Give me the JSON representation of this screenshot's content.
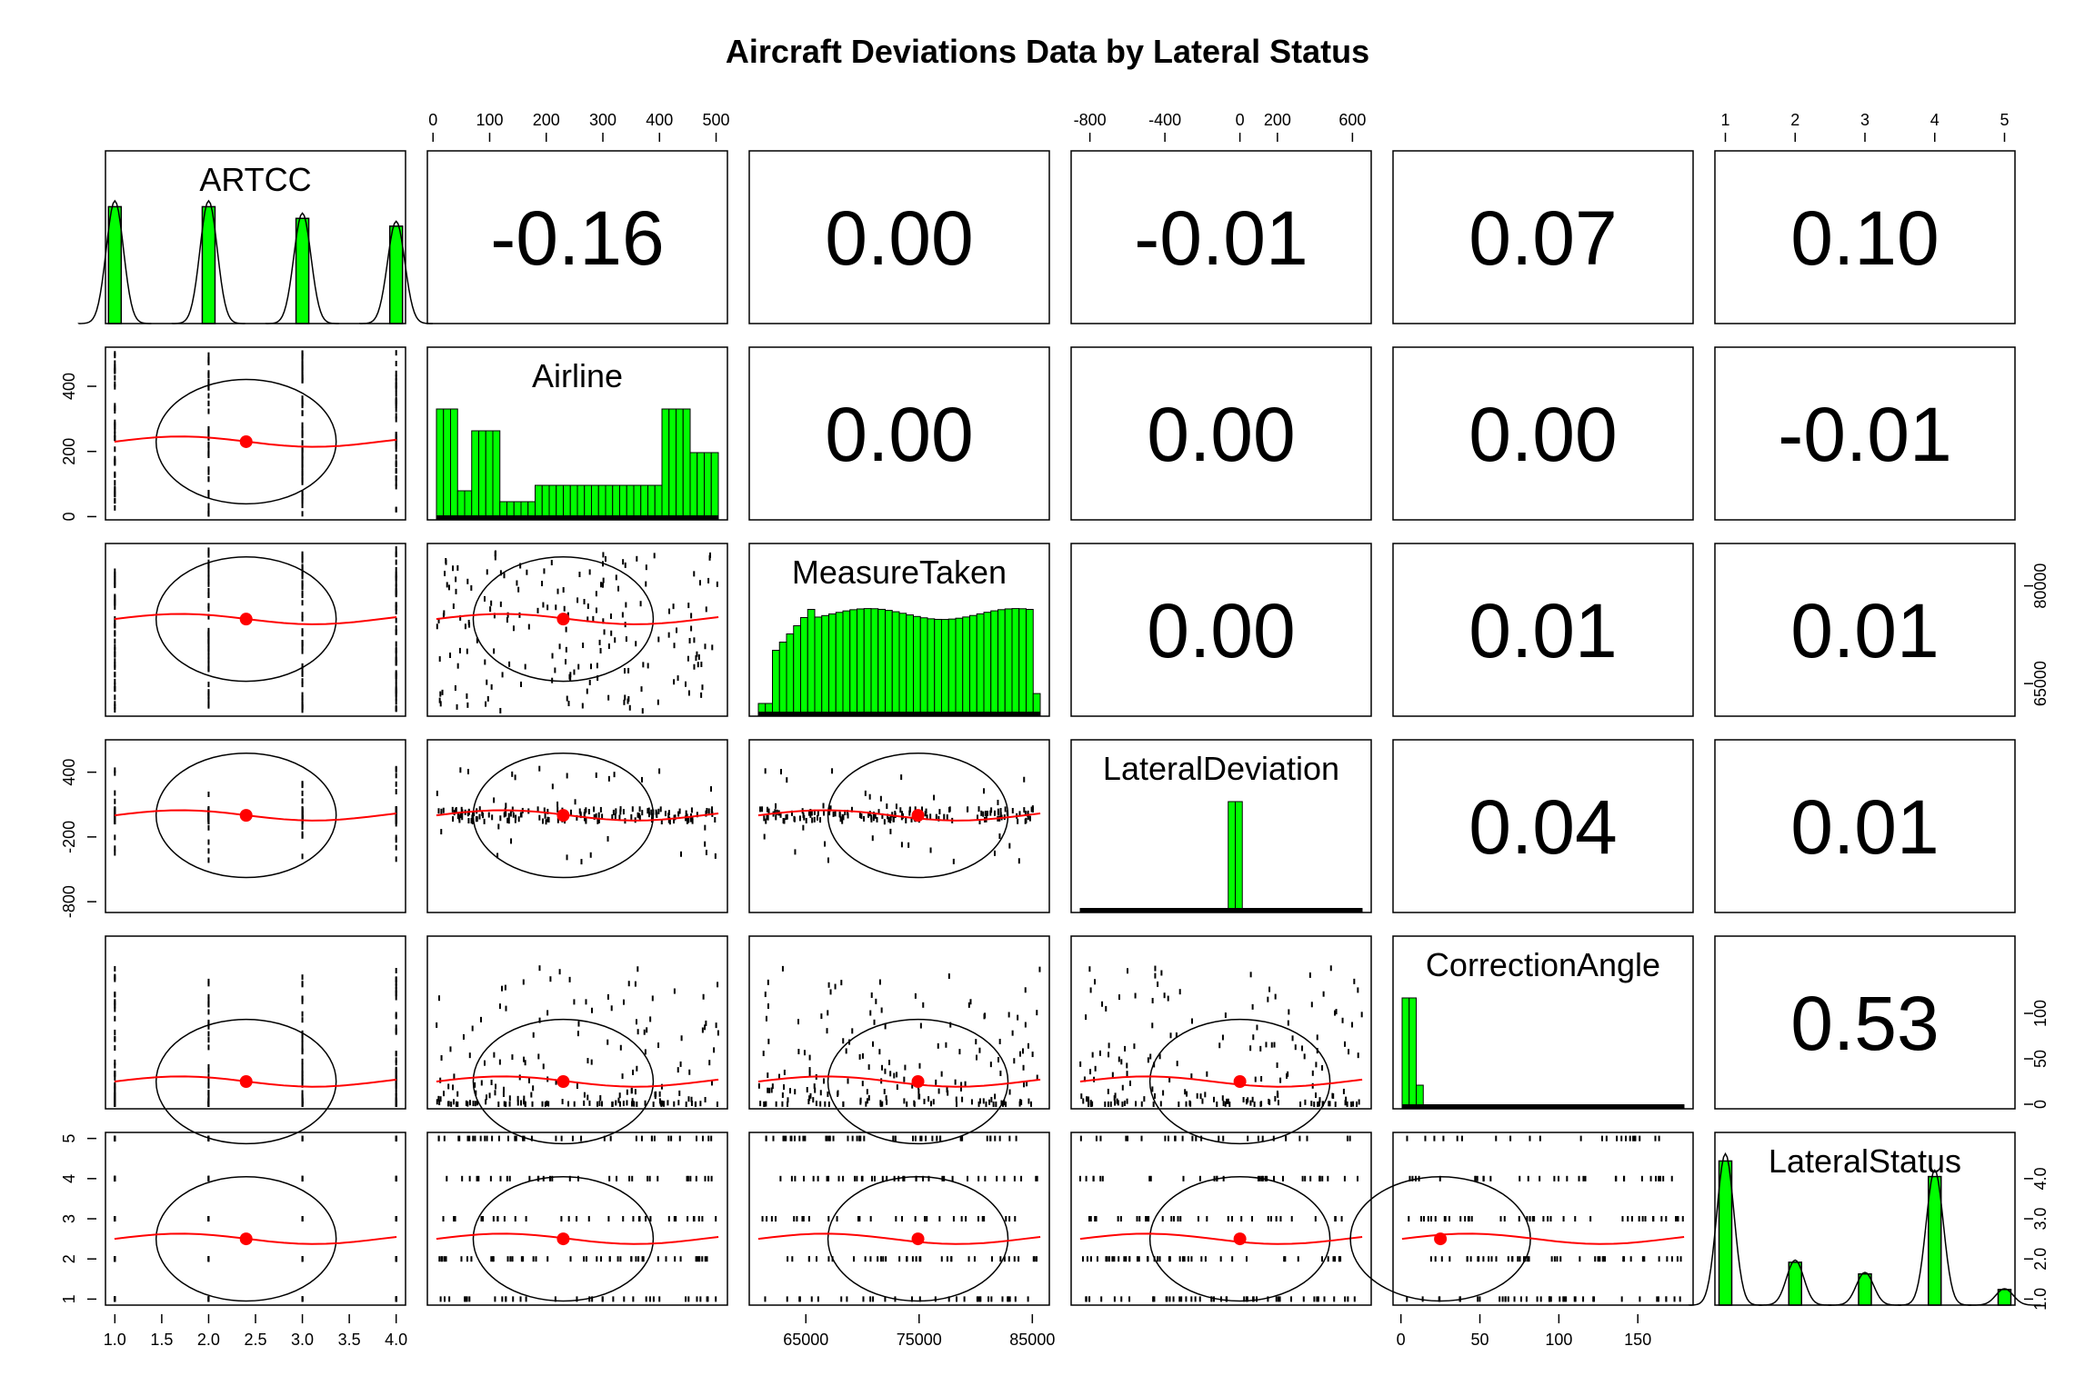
{
  "chart_data": {
    "type": "scatter",
    "title": "Aircraft Deviations Data by Lateral Status",
    "variables": [
      "ARTCC",
      "Airline",
      "MeasureTaken",
      "LateralDeviation",
      "CorrectionAngle",
      "LateralStatus"
    ],
    "correlations": [
      {
        "row": "ARTCC",
        "col": "Airline",
        "value": "-0.16"
      },
      {
        "row": "ARTCC",
        "col": "MeasureTaken",
        "value": "0.00"
      },
      {
        "row": "ARTCC",
        "col": "LateralDeviation",
        "value": "-0.01"
      },
      {
        "row": "ARTCC",
        "col": "CorrectionAngle",
        "value": "0.07"
      },
      {
        "row": "ARTCC",
        "col": "LateralStatus",
        "value": "0.10"
      },
      {
        "row": "Airline",
        "col": "MeasureTaken",
        "value": "0.00"
      },
      {
        "row": "Airline",
        "col": "LateralDeviation",
        "value": "0.00"
      },
      {
        "row": "Airline",
        "col": "CorrectionAngle",
        "value": "0.00"
      },
      {
        "row": "Airline",
        "col": "LateralStatus",
        "value": "-0.01"
      },
      {
        "row": "MeasureTaken",
        "col": "LateralDeviation",
        "value": "0.00"
      },
      {
        "row": "MeasureTaken",
        "col": "CorrectionAngle",
        "value": "0.01"
      },
      {
        "row": "MeasureTaken",
        "col": "LateralStatus",
        "value": "0.01"
      },
      {
        "row": "LateralDeviation",
        "col": "CorrectionAngle",
        "value": "0.04"
      },
      {
        "row": "LateralDeviation",
        "col": "LateralStatus",
        "value": "0.01"
      },
      {
        "row": "CorrectionAngle",
        "col": "LateralStatus",
        "value": "0.53"
      }
    ],
    "axes": {
      "ARTCC": {
        "range": [
          0.9,
          4.1
        ],
        "ticks": [
          "1.0",
          "1.5",
          "2.0",
          "2.5",
          "3.0",
          "3.5",
          "4.0"
        ],
        "tick_values": [
          1.0,
          1.5,
          2.0,
          2.5,
          3.0,
          3.5,
          4.0
        ],
        "side": "bottom"
      },
      "Airline": {
        "range": [
          -10,
          520
        ],
        "ticks": [
          "0",
          "100",
          "200",
          "300",
          "400",
          "500"
        ],
        "tick_values": [
          0,
          100,
          200,
          300,
          400,
          500
        ],
        "side": "top",
        "left_ticks": [
          "0",
          "200",
          "400"
        ],
        "left_tick_values": [
          0,
          200,
          400
        ]
      },
      "MeasureTaken": {
        "range": [
          60000,
          86500
        ],
        "ticks": [
          "65000",
          "75000",
          "85000"
        ],
        "tick_values": [
          65000,
          75000,
          85000
        ],
        "side": "bottom",
        "right_ticks": [
          "65000",
          "80000"
        ],
        "right_tick_values": [
          65000,
          80000
        ]
      },
      "LateralDeviation": {
        "range": [
          -900,
          700
        ],
        "ticks": [
          "-800",
          "-400",
          "0",
          "200",
          "600"
        ],
        "tick_values": [
          -800,
          -400,
          0,
          200,
          600
        ],
        "side": "top",
        "left_ticks": [
          "-800",
          "-200",
          "400"
        ],
        "left_tick_values": [
          -800,
          -200,
          400
        ]
      },
      "CorrectionAngle": {
        "range": [
          -5,
          185
        ],
        "ticks": [
          "0",
          "50",
          "100",
          "150"
        ],
        "tick_values": [
          0,
          50,
          100,
          150
        ],
        "side": "bottom",
        "right_ticks": [
          "0",
          "50",
          "100"
        ],
        "right_tick_values": [
          0,
          50,
          100
        ]
      },
      "LateralStatus": {
        "range": [
          0.85,
          5.15
        ],
        "ticks": [
          "1",
          "2",
          "3",
          "4",
          "5"
        ],
        "tick_values": [
          1,
          2,
          3,
          4,
          5
        ],
        "side": "top",
        "right_ticks": [
          "1.0",
          "2.0",
          "3.0",
          "4.0"
        ],
        "right_tick_values": [
          1,
          2,
          3,
          4
        ],
        "left_ticks": [
          "1",
          "2",
          "3",
          "4",
          "5"
        ],
        "left_tick_values": [
          1,
          2,
          3,
          4,
          5
        ]
      }
    },
    "histograms": {
      "ARTCC": [
        {
          "x": 1,
          "height": 3.0
        },
        {
          "x": 2,
          "height": 3.0
        },
        {
          "x": 3,
          "height": 2.7
        },
        {
          "x": 4,
          "height": 2.5
        }
      ],
      "LateralStatus": [
        {
          "x": 1,
          "height": 3.7
        },
        {
          "x": 2,
          "height": 1.1
        },
        {
          "x": 3,
          "height": 0.8
        },
        {
          "x": 4,
          "height": 3.3
        },
        {
          "x": 5,
          "height": 0.4
        }
      ]
    },
    "means": {
      "ARTCC": 2.4,
      "Airline": 230,
      "MeasureTaken": 74900,
      "LateralDeviation": 0,
      "CorrectionAngle": 25,
      "LateralStatus": 2.5
    },
    "grid": false,
    "colors": {
      "histogram_fill": "#00ff00",
      "smooth_line": "#ff0000",
      "mean_point": "#ff0000",
      "points": "#000000"
    }
  }
}
